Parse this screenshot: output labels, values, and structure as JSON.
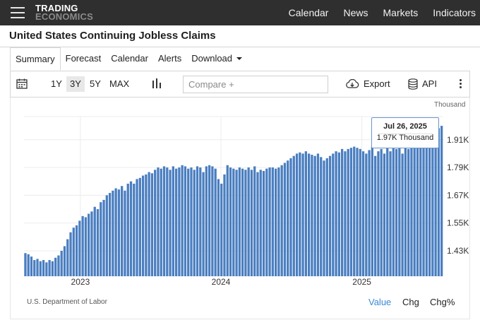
{
  "brand": {
    "line1": "TRADING",
    "line2": "ECONOMICS"
  },
  "nav": [
    "Calendar",
    "News",
    "Markets",
    "Indicators"
  ],
  "page_title": "United States Continuing Jobless Claims",
  "tabs": [
    {
      "label": "Summary",
      "active": true
    },
    {
      "label": "Forecast"
    },
    {
      "label": "Calendar"
    },
    {
      "label": "Alerts"
    },
    {
      "label": "Download"
    }
  ],
  "toolbar": {
    "ranges": [
      "1Y",
      "3Y",
      "5Y",
      "MAX"
    ],
    "active_range": "3Y",
    "compare_placeholder": "Compare +",
    "export_label": "Export",
    "api_label": "API"
  },
  "chart_footer": {
    "source": "U.S. Department of Labor",
    "value_label": "Value",
    "chg_label": "Chg",
    "chgpct_label": "Chg%"
  },
  "colors": {
    "bar": "#4a7ec0",
    "accent": "#3a8ad6",
    "topbar": "#2f2f2f"
  },
  "chart_data": {
    "type": "bar",
    "unit_label": "Thousand",
    "y_ticks": [
      "1.91K",
      "1.79K",
      "1.67K",
      "1.55K",
      "1.43K"
    ],
    "y_tick_values": [
      1910,
      1790,
      1670,
      1550,
      1430
    ],
    "ylim": [
      1320,
      2010
    ],
    "x_labels": [
      "2023",
      "2024",
      "2025"
    ],
    "start_week": "2022-08-13",
    "end_week": "2025-07-26",
    "tooltip": {
      "date": "Jul 26, 2025",
      "value": "1.97K Thousand"
    },
    "values": [
      1420,
      1415,
      1405,
      1390,
      1395,
      1385,
      1390,
      1380,
      1390,
      1385,
      1400,
      1410,
      1430,
      1450,
      1480,
      1510,
      1530,
      1540,
      1560,
      1580,
      1575,
      1590,
      1600,
      1620,
      1610,
      1640,
      1650,
      1670,
      1680,
      1690,
      1700,
      1695,
      1710,
      1690,
      1720,
      1730,
      1720,
      1740,
      1745,
      1755,
      1760,
      1770,
      1765,
      1780,
      1790,
      1785,
      1795,
      1790,
      1780,
      1795,
      1785,
      1790,
      1800,
      1795,
      1785,
      1790,
      1780,
      1795,
      1790,
      1770,
      1795,
      1800,
      1795,
      1785,
      1740,
      1720,
      1760,
      1800,
      1790,
      1785,
      1780,
      1790,
      1785,
      1780,
      1790,
      1780,
      1795,
      1770,
      1780,
      1775,
      1785,
      1790,
      1790,
      1785,
      1790,
      1800,
      1810,
      1820,
      1830,
      1840,
      1850,
      1855,
      1850,
      1860,
      1850,
      1845,
      1840,
      1850,
      1835,
      1820,
      1830,
      1840,
      1850,
      1860,
      1855,
      1870,
      1860,
      1870,
      1875,
      1880,
      1875,
      1870,
      1860,
      1850,
      1865,
      1880,
      1840,
      1860,
      1870,
      1850,
      1880,
      1860,
      1880,
      1870,
      1880,
      1850,
      1890,
      1870,
      1900,
      1880,
      1890,
      1880,
      1920,
      1910,
      1930,
      1940,
      1950,
      1960,
      1970
    ]
  }
}
